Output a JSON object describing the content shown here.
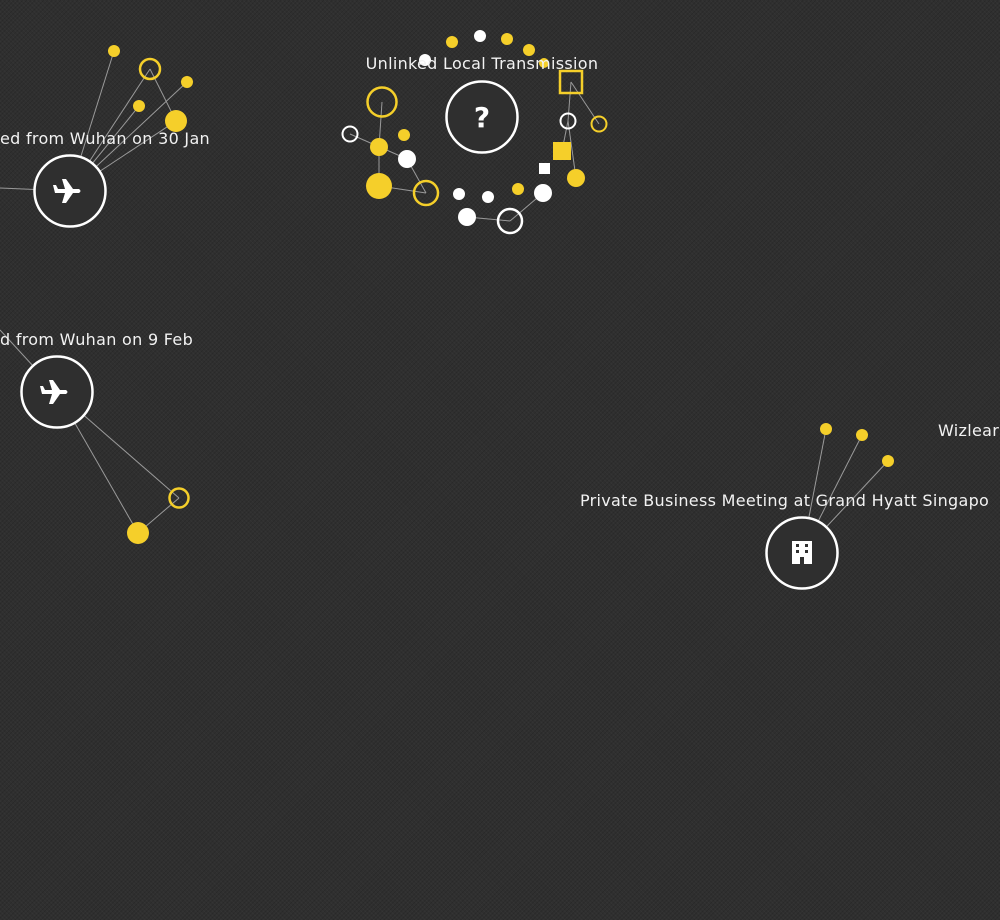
{
  "colors": {
    "background": "#2f2f2f",
    "accent": "#f5cf2a",
    "node": "#ffffff",
    "link": "#9a9a9a"
  },
  "clusters": [
    {
      "id": "wuhan30",
      "label": "ed from Wuhan on 30 Jan",
      "icon": "airplane-icon"
    },
    {
      "id": "wuhan9",
      "label": "d from Wuhan on 9 Feb",
      "icon": "airplane-icon"
    },
    {
      "id": "unlinked",
      "label": "Unlinked Local Transmission",
      "icon": "question-icon",
      "glyph": "?"
    },
    {
      "id": "hyatt",
      "label": "Private Business Meeting at Grand Hyatt Singapo",
      "icon": "building-icon"
    },
    {
      "id": "wizlearn",
      "label": "Wizlear"
    }
  ]
}
